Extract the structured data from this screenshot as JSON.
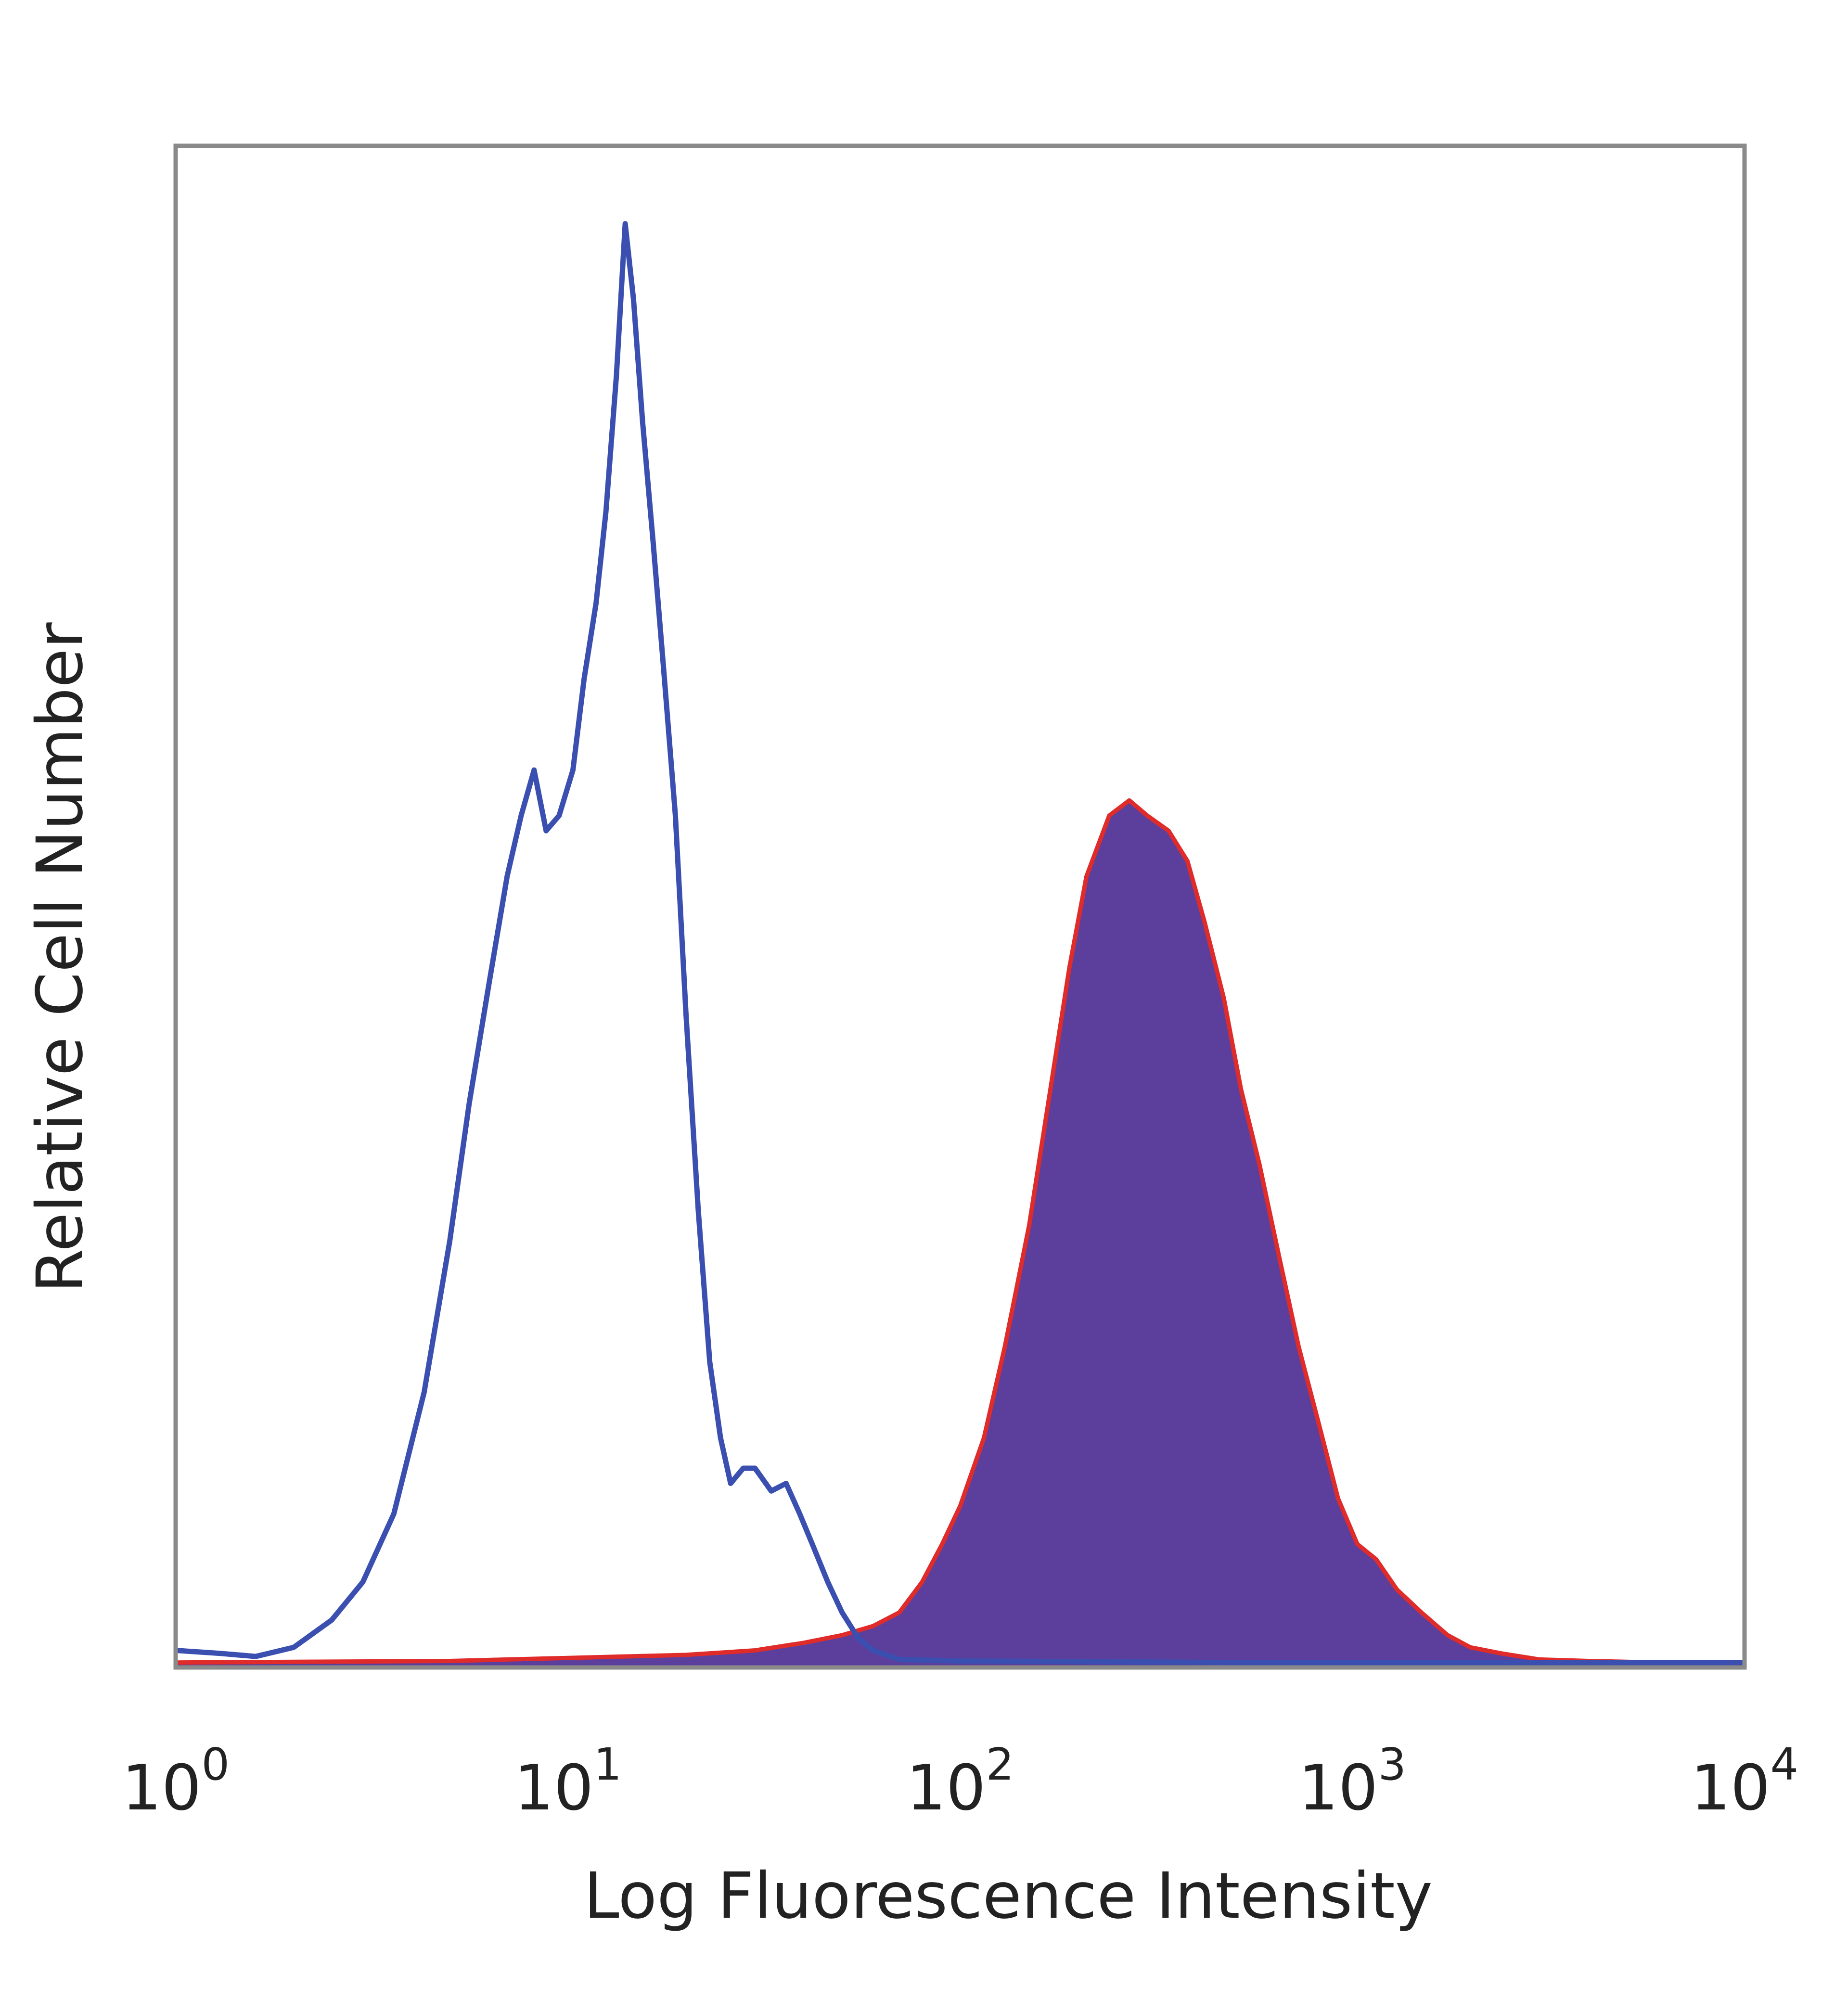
{
  "chart_data": {
    "type": "area",
    "xlabel": "Log Fluorescence Intensity",
    "ylabel": "Relative Cell Number",
    "x_scale": "log",
    "xlim": [
      1,
      10000
    ],
    "ylim": [
      0,
      1
    ],
    "grid": false,
    "x_ticks": [
      {
        "base": "10",
        "exp": "0",
        "value": 1
      },
      {
        "base": "10",
        "exp": "1",
        "value": 10
      },
      {
        "base": "10",
        "exp": "2",
        "value": 100
      },
      {
        "base": "10",
        "exp": "3",
        "value": 1000
      },
      {
        "base": "10",
        "exp": "4",
        "value": 10000
      }
    ],
    "series": [
      {
        "style": "outline",
        "color": "#3a4fb0",
        "x": [
          1,
          1.3,
          1.6,
          2.0,
          2.5,
          3.0,
          3.6,
          4.3,
          5.0,
          5.6,
          6.3,
          7.0,
          7.6,
          8.2,
          8.8,
          9.5,
          10.3,
          11.0,
          11.8,
          12.5,
          13.3,
          14.0,
          14.7,
          15.5,
          16.5,
          17.5,
          18.8,
          20.0,
          21.5,
          23.0,
          24.5,
          26.0,
          28.0,
          30.0,
          33.0,
          36.0,
          39.0,
          42.0,
          46.0,
          50.0,
          55.0,
          60.0,
          70.0,
          100.0,
          500.0,
          10000.0
        ],
        "y": [
          0.01,
          0.008,
          0.006,
          0.012,
          0.03,
          0.055,
          0.1,
          0.18,
          0.28,
          0.37,
          0.45,
          0.52,
          0.56,
          0.59,
          0.55,
          0.56,
          0.59,
          0.65,
          0.7,
          0.76,
          0.85,
          0.95,
          0.9,
          0.82,
          0.74,
          0.66,
          0.56,
          0.43,
          0.3,
          0.2,
          0.15,
          0.12,
          0.13,
          0.13,
          0.115,
          0.12,
          0.1,
          0.08,
          0.055,
          0.035,
          0.018,
          0.01,
          0.004,
          0.003,
          0.002,
          0.002
        ]
      },
      {
        "style": "filled",
        "color": "#e02b2b",
        "fill": "#5c3f9c",
        "x": [
          1,
          5,
          10,
          20,
          30,
          40,
          50,
          60,
          70,
          80,
          90,
          100,
          115,
          130,
          150,
          170,
          190,
          210,
          240,
          270,
          300,
          340,
          380,
          420,
          470,
          520,
          580,
          650,
          730,
          820,
          920,
          1030,
          1150,
          1300,
          1500,
          1750,
          2000,
          2400,
          3000,
          4000,
          6000,
          10000
        ],
        "y": [
          0.002,
          0.003,
          0.005,
          0.007,
          0.01,
          0.015,
          0.02,
          0.026,
          0.035,
          0.055,
          0.08,
          0.105,
          0.15,
          0.21,
          0.29,
          0.38,
          0.46,
          0.52,
          0.56,
          0.57,
          0.56,
          0.55,
          0.53,
          0.49,
          0.44,
          0.38,
          0.33,
          0.27,
          0.21,
          0.16,
          0.11,
          0.08,
          0.07,
          0.05,
          0.035,
          0.02,
          0.012,
          0.008,
          0.004,
          0.003,
          0.002,
          0.002
        ]
      }
    ]
  }
}
